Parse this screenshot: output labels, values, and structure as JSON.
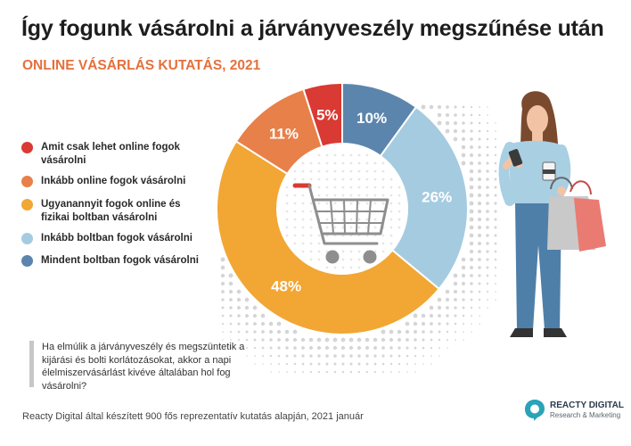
{
  "header": {
    "title": "Így fogunk vásárolni a járványveszély megszűnése után",
    "subtitle": "ONLINE VÁSÁRLÁS KUTATÁS, 2021"
  },
  "chart_data": {
    "type": "pie",
    "subtype": "donut",
    "title": "Így fogunk vásárolni a járványveszély megszűnése után",
    "subtitle": "ONLINE VÁSÁRLÁS KUTATÁS, 2021",
    "legend_position": "left",
    "series": [
      {
        "name": "Amit csak lehet online fogok vásárolni",
        "value": 5,
        "label": "5%",
        "color": "#d93a33"
      },
      {
        "name": "Inkább online fogok vásárolni",
        "value": 11,
        "label": "11%",
        "color": "#e8804a"
      },
      {
        "name": "Ugyanannyit fogok online és fizikai boltban vásárolni",
        "value": 48,
        "label": "48%",
        "color": "#f2a634"
      },
      {
        "name": "Inkább boltban fogok vásárolni",
        "value": 26,
        "label": "26%",
        "color": "#a5cbe0"
      },
      {
        "name": "Mindent boltban fogok vásárolni",
        "value": 10,
        "label": "10%",
        "color": "#5b85ad"
      }
    ]
  },
  "legend": {
    "items": [
      {
        "label": "Amit csak lehet online fogok vásárolni",
        "color": "#d93a33"
      },
      {
        "label": "Inkább online fogok vásárolni",
        "color": "#e8804a"
      },
      {
        "label": "Ugyanannyit fogok online és fizikai boltban vásárolni",
        "color": "#f2a634"
      },
      {
        "label": "Inkább boltban fogok vásárolni",
        "color": "#a5cbe0"
      },
      {
        "label": "Mindent boltban fogok vásárolni",
        "color": "#5b85ad"
      }
    ]
  },
  "question": "Ha elmúlik a járványveszély és megszüntetik a kijárási és bolti korlátozásokat, akkor a napi élelmiszervásárlást kivéve általában hol fog vásárolni?",
  "footer": "Reacty Digital által készített 900 fős reprezentatív kutatás alapján, 2021 január",
  "brand": {
    "name": "REACTY DIGITAL",
    "tagline": "Research & Marketing",
    "logo_icon": "reacty-logo-icon",
    "accent": "#2aa3b8"
  },
  "illustration": {
    "center_icon": "shopping-cart-icon",
    "figure": "woman-with-shopping-bags-illustration"
  }
}
